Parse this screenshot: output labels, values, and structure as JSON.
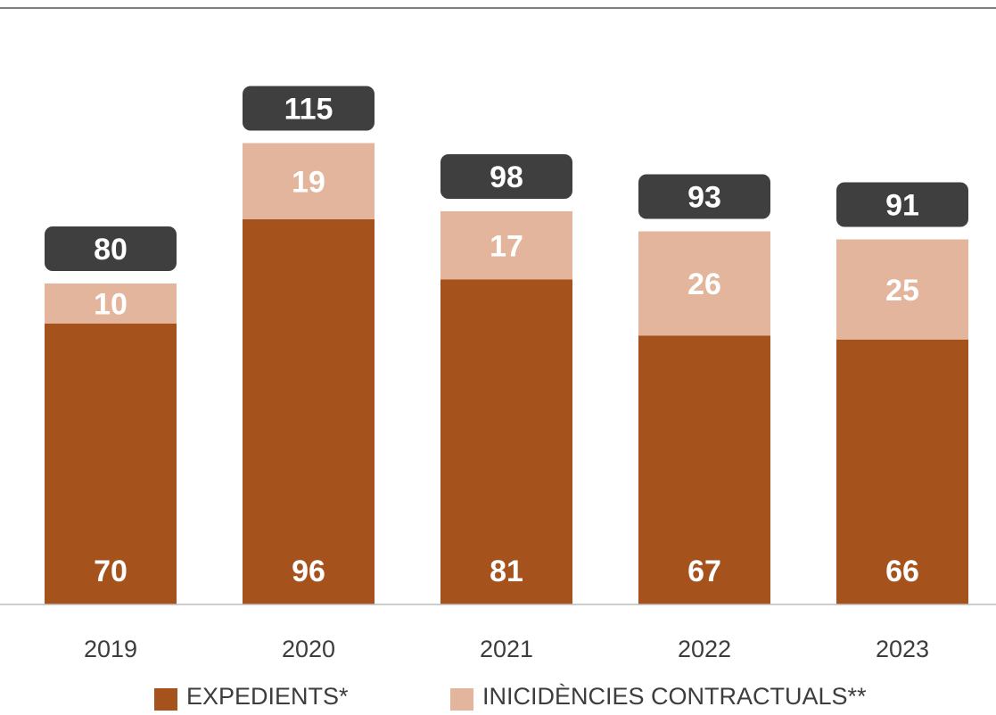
{
  "chart_data": {
    "type": "bar",
    "stacked": true,
    "categories": [
      "2019",
      "2020",
      "2021",
      "2022",
      "2023"
    ],
    "series": [
      {
        "name": "EXPEDIENTS*",
        "values": [
          70,
          96,
          81,
          67,
          66
        ],
        "color": "#a5521d"
      },
      {
        "name": "INICIDÈNCIES CONTRACTUALS**",
        "values": [
          10,
          19,
          17,
          26,
          25
        ],
        "color": "#e2b59c"
      }
    ],
    "totals": [
      80,
      115,
      98,
      93,
      91
    ],
    "total_badge_color": "#3f3f3f",
    "ylim": [
      0,
      115
    ],
    "grid": false,
    "legend_position": "bottom"
  }
}
